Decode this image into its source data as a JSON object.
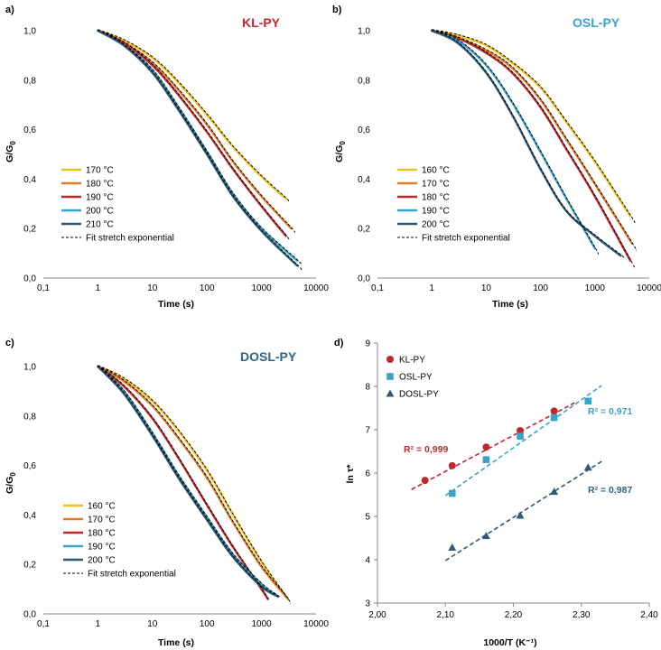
{
  "figure_panels": [
    {
      "id": "a",
      "panel_label": "a)",
      "title": "KL-PY",
      "title_color": "#c0282c",
      "ylabel_main": "G/G",
      "ylabel_sub": "0",
      "xlabel": "Time (s)",
      "x_ticks": [
        "0,1",
        "1",
        "10",
        "100",
        "1000",
        "10000"
      ],
      "y_ticks": [
        "0,0",
        "0,2",
        "0,4",
        "0,6",
        "0,8",
        "1,0"
      ],
      "legend": [
        "170 °C",
        "180 °C",
        "190 °C",
        "200 °C",
        "210 °C"
      ],
      "fit_label": "Fit stretch exponential"
    },
    {
      "id": "b",
      "panel_label": "b)",
      "title": "OSL-PY",
      "title_color": "#3aa3c8",
      "ylabel_main": "G/G",
      "ylabel_sub": "0",
      "xlabel": "Time (s)",
      "x_ticks": [
        "0,1",
        "1",
        "10",
        "100",
        "1000",
        "10000"
      ],
      "y_ticks": [
        "0,0",
        "0,2",
        "0,4",
        "0,6",
        "0,8",
        "1,0"
      ],
      "legend": [
        "160 °C",
        "170 °C",
        "180 °C",
        "190 °C",
        "200 °C"
      ],
      "fit_label": "Fit stretch exponential"
    },
    {
      "id": "c",
      "panel_label": "c)",
      "title": "DOSL-PY",
      "title_color": "#2e6585",
      "ylabel_main": "G/G",
      "ylabel_sub": "0",
      "xlabel": "Time (s)",
      "x_ticks": [
        "0,1",
        "1",
        "10",
        "100",
        "1000",
        "10000"
      ],
      "y_ticks": [
        "0,0",
        "0,2",
        "0,4",
        "0,6",
        "0,8",
        "1,0"
      ],
      "legend": [
        "160 °C",
        "170 °C",
        "180 °C",
        "190 °C",
        "200 °C"
      ],
      "fit_label": "Fit stretch exponential"
    },
    {
      "id": "d",
      "panel_label": "d)",
      "ylabel": "ln τ*",
      "xlabel": "1000/T (K⁻¹)",
      "x_ticks": [
        "2,00",
        "2,10",
        "2,20",
        "2,30",
        "2,40"
      ],
      "y_ticks": [
        "3",
        "4",
        "5",
        "6",
        "7",
        "8",
        "9"
      ],
      "legend": [
        "KL-PY",
        "OSL-PY",
        "DOSL-PY"
      ],
      "r2": [
        "R² = 0,999",
        "R² = 0,971",
        "R² = 0,987"
      ]
    }
  ],
  "colors": {
    "yellow": "#f2c21b",
    "orange": "#e07e2a",
    "red": "#c0282c",
    "lightblue": "#3aa3c8",
    "darkblue": "#2e5a78"
  },
  "chart_data": [
    {
      "type": "line",
      "title": "KL-PY",
      "xlabel": "Time (s)",
      "ylabel": "G/G0",
      "xscale": "log",
      "xlim": [
        0.1,
        10000
      ],
      "ylim": [
        0,
        1
      ],
      "series": [
        {
          "name": "170 °C",
          "color": "#f2c21b",
          "x": [
            1,
            3,
            10,
            30,
            100,
            300,
            1000,
            2800
          ],
          "y": [
            1.0,
            0.96,
            0.89,
            0.79,
            0.66,
            0.53,
            0.41,
            0.32
          ]
        },
        {
          "name": "180 °C",
          "color": "#e07e2a",
          "x": [
            1,
            3,
            10,
            30,
            100,
            300,
            1000,
            3500
          ],
          "y": [
            1.0,
            0.95,
            0.87,
            0.76,
            0.62,
            0.47,
            0.33,
            0.2
          ]
        },
        {
          "name": "190 °C",
          "color": "#c0282c",
          "x": [
            1,
            3,
            10,
            30,
            100,
            300,
            1000,
            2800
          ],
          "y": [
            1.0,
            0.95,
            0.86,
            0.74,
            0.59,
            0.44,
            0.29,
            0.17
          ]
        },
        {
          "name": "200 °C",
          "color": "#3aa3c8",
          "x": [
            1,
            3,
            10,
            30,
            100,
            300,
            1000,
            4500
          ],
          "y": [
            1.0,
            0.94,
            0.84,
            0.69,
            0.51,
            0.34,
            0.2,
            0.07
          ]
        },
        {
          "name": "210 °C",
          "color": "#2e5a78",
          "x": [
            1,
            3,
            10,
            30,
            100,
            300,
            1000,
            4500
          ],
          "y": [
            1.0,
            0.94,
            0.83,
            0.68,
            0.5,
            0.33,
            0.19,
            0.05
          ]
        }
      ],
      "fit_label": "Fit stretch exponential"
    },
    {
      "type": "line",
      "title": "OSL-PY",
      "xlabel": "Time (s)",
      "ylabel": "G/G0",
      "xscale": "log",
      "xlim": [
        0.1,
        10000
      ],
      "ylim": [
        0,
        1
      ],
      "series": [
        {
          "name": "160 °C",
          "color": "#f2c21b",
          "x": [
            1,
            3,
            10,
            30,
            100,
            300,
            1000,
            4500
          ],
          "y": [
            1.0,
            0.98,
            0.94,
            0.87,
            0.77,
            0.63,
            0.47,
            0.25
          ]
        },
        {
          "name": "170 °C",
          "color": "#e07e2a",
          "x": [
            1,
            3,
            10,
            30,
            100,
            300,
            1000,
            4800
          ],
          "y": [
            1.0,
            0.97,
            0.92,
            0.85,
            0.72,
            0.56,
            0.38,
            0.14
          ]
        },
        {
          "name": "180 °C",
          "color": "#c0282c",
          "x": [
            1,
            3,
            10,
            30,
            100,
            300,
            1000,
            4500
          ],
          "y": [
            1.0,
            0.97,
            0.91,
            0.83,
            0.69,
            0.52,
            0.33,
            0.07
          ]
        },
        {
          "name": "190 °C",
          "color": "#3aa3c8",
          "x": [
            1,
            3,
            10,
            30,
            100,
            300,
            1000
          ],
          "y": [
            1.0,
            0.96,
            0.86,
            0.71,
            0.51,
            0.32,
            0.12
          ]
        },
        {
          "name": "200 °C",
          "color": "#2e5a78",
          "x": [
            1,
            3,
            10,
            30,
            100,
            300,
            1000,
            3000
          ],
          "y": [
            1.0,
            0.95,
            0.83,
            0.66,
            0.44,
            0.27,
            0.17,
            0.09
          ]
        }
      ],
      "fit_label": "Fit stretch exponential"
    },
    {
      "type": "line",
      "title": "DOSL-PY",
      "xlabel": "Time (s)",
      "ylabel": "G/G0",
      "xscale": "log",
      "xlim": [
        0.1,
        10000
      ],
      "ylim": [
        0,
        1
      ],
      "series": [
        {
          "name": "160 °C",
          "color": "#f2c21b",
          "x": [
            1,
            3,
            10,
            30,
            100,
            300,
            1000,
            3000
          ],
          "y": [
            1.0,
            0.95,
            0.86,
            0.74,
            0.58,
            0.4,
            0.21,
            0.06
          ]
        },
        {
          "name": "170 °C",
          "color": "#e07e2a",
          "x": [
            1,
            3,
            10,
            30,
            100,
            300,
            1000,
            2800
          ],
          "y": [
            1.0,
            0.94,
            0.84,
            0.71,
            0.55,
            0.37,
            0.19,
            0.07
          ]
        },
        {
          "name": "180 °C",
          "color": "#c0282c",
          "x": [
            1,
            3,
            10,
            30,
            100,
            300,
            1000,
            1300
          ],
          "y": [
            1.0,
            0.92,
            0.79,
            0.63,
            0.44,
            0.27,
            0.1,
            0.06
          ]
        },
        {
          "name": "190 °C",
          "color": "#3aa3c8",
          "x": [
            1,
            3,
            10,
            30,
            100,
            300,
            1000,
            2000
          ],
          "y": [
            1.0,
            0.9,
            0.73,
            0.56,
            0.39,
            0.24,
            0.12,
            0.07
          ]
        },
        {
          "name": "200 °C",
          "color": "#2e5a78",
          "x": [
            1,
            3,
            10,
            30,
            100,
            300,
            1000,
            2000
          ],
          "y": [
            1.0,
            0.89,
            0.72,
            0.55,
            0.38,
            0.23,
            0.11,
            0.07
          ]
        }
      ],
      "fit_label": "Fit stretch exponential"
    },
    {
      "type": "scatter",
      "xlabel": "1000/T (K⁻¹)",
      "ylabel": "ln τ*",
      "xlim": [
        2.0,
        2.4
      ],
      "ylim": [
        3,
        9
      ],
      "series": [
        {
          "name": "KL-PY",
          "marker": "circle",
          "color": "#c0282c",
          "x": [
            2.07,
            2.11,
            2.16,
            2.21,
            2.26
          ],
          "y": [
            5.83,
            6.17,
            6.6,
            6.98,
            7.43
          ],
          "r2": "R² = 0,999",
          "fit": {
            "x": [
              2.05,
              2.29
            ],
            "y": [
              5.62,
              7.62
            ]
          }
        },
        {
          "name": "OSL-PY",
          "marker": "square",
          "color": "#3aa3c8",
          "x": [
            2.11,
            2.16,
            2.21,
            2.26,
            2.31
          ],
          "y": [
            5.53,
            6.31,
            6.85,
            7.28,
            7.66
          ],
          "r2": "R² = 0,971",
          "fit": {
            "x": [
              2.1,
              2.33
            ],
            "y": [
              5.48,
              8.02
            ]
          }
        },
        {
          "name": "DOSL-PY",
          "marker": "triangle",
          "color": "#2e5a78",
          "x": [
            2.11,
            2.16,
            2.21,
            2.26,
            2.31
          ],
          "y": [
            4.28,
            4.55,
            5.02,
            5.57,
            6.13
          ],
          "r2": "R² = 0,987",
          "fit": {
            "x": [
              2.1,
              2.33
            ],
            "y": [
              3.98,
              6.27
            ]
          }
        }
      ]
    }
  ]
}
